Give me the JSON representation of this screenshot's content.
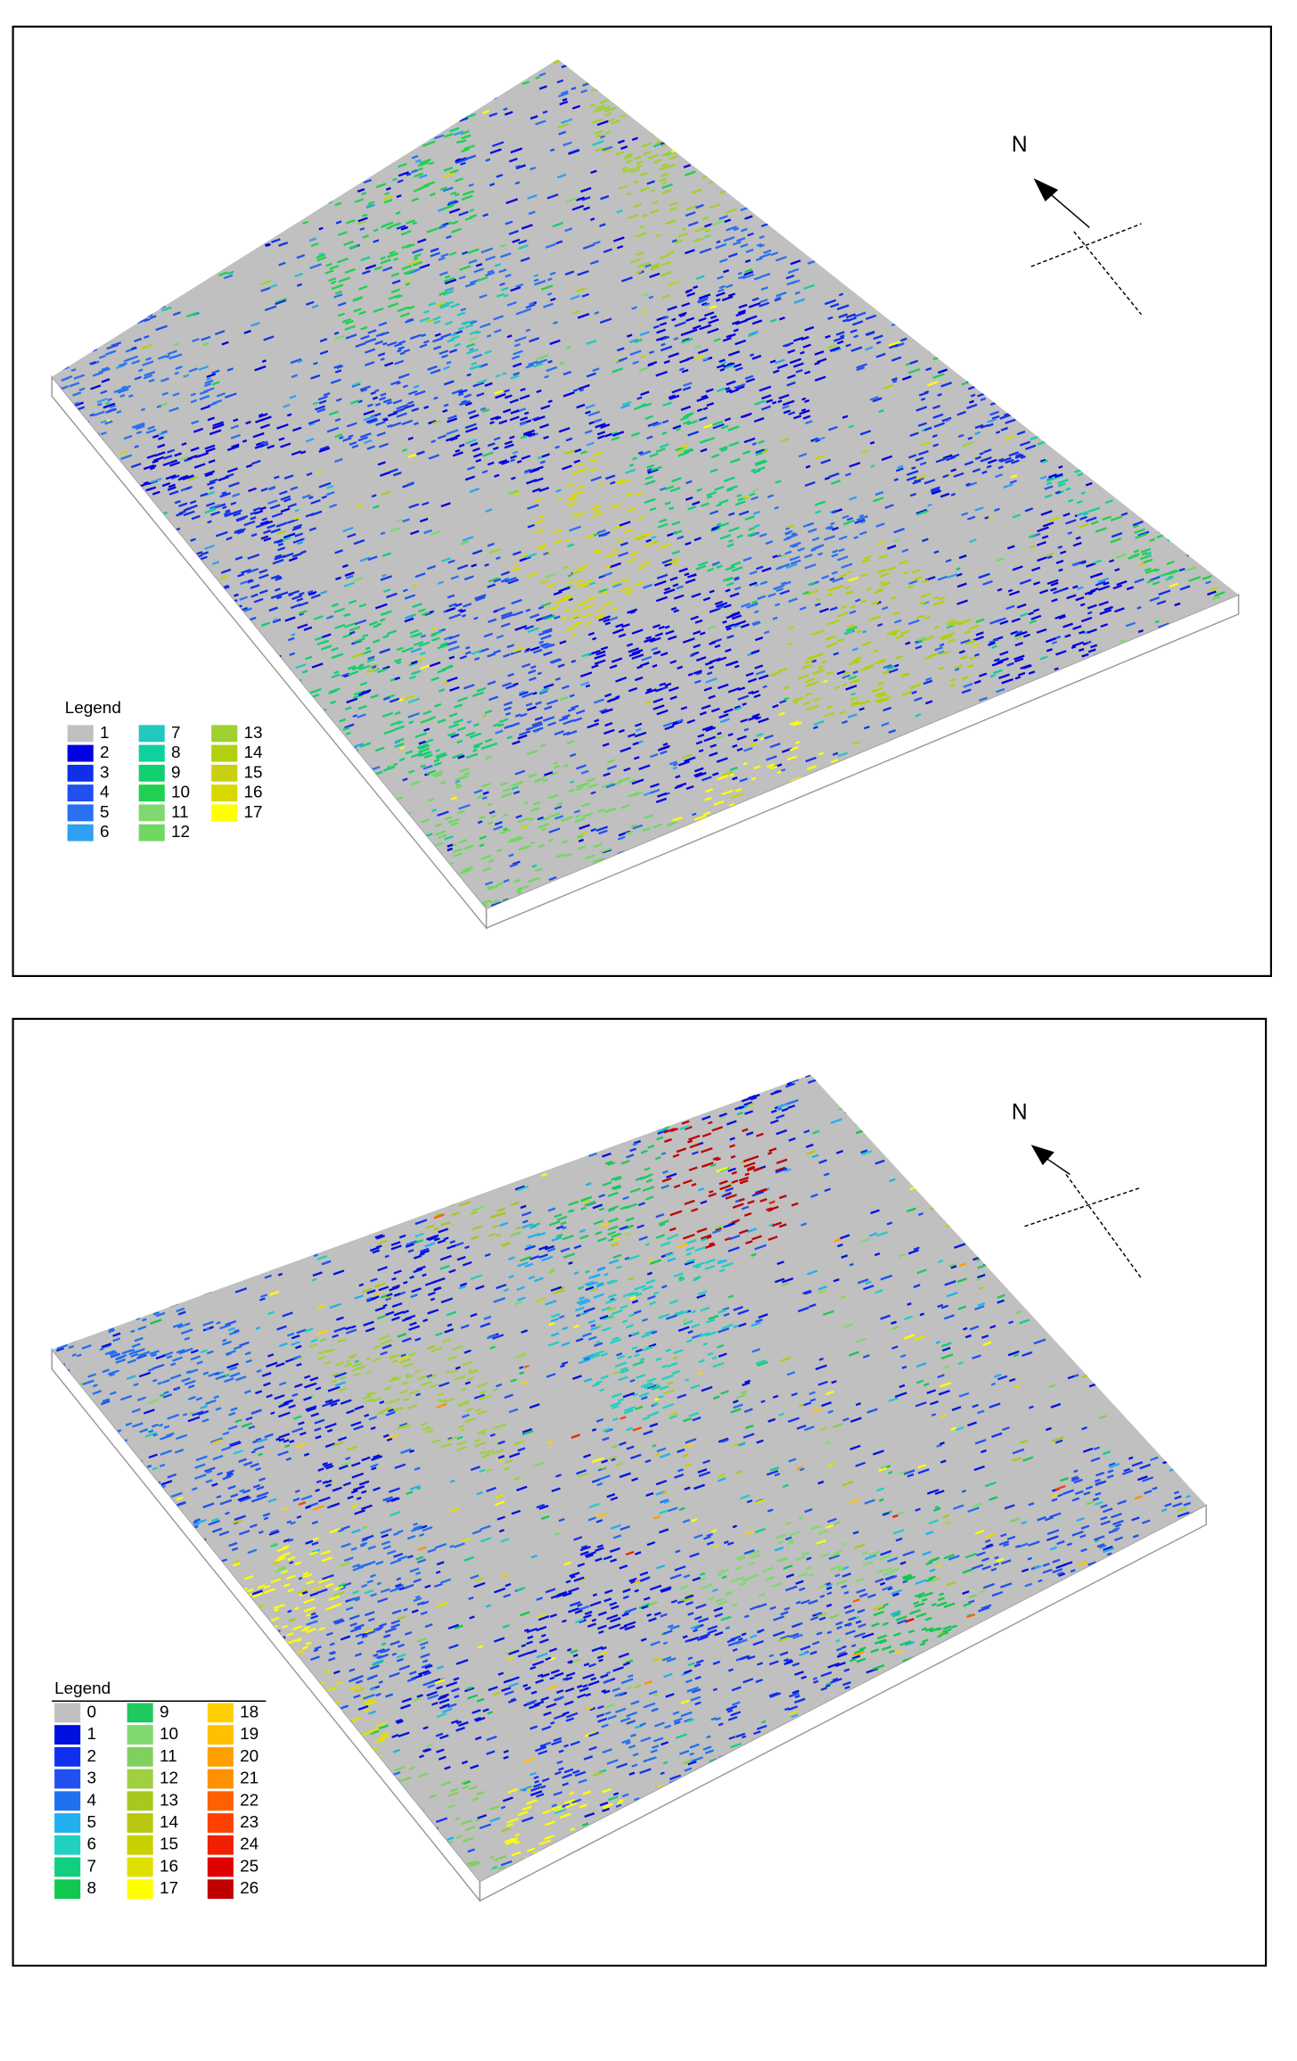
{
  "maps": [
    {
      "north_label": "N",
      "legend": {
        "title": "Legend",
        "items": [
          {
            "label": "1",
            "color": "#c0c0c0"
          },
          {
            "label": "2",
            "color": "#0000e0"
          },
          {
            "label": "3",
            "color": "#1030e8"
          },
          {
            "label": "4",
            "color": "#2050f0"
          },
          {
            "label": "5",
            "color": "#2a70f0"
          },
          {
            "label": "6",
            "color": "#30a0f0"
          },
          {
            "label": "7",
            "color": "#20c8c0"
          },
          {
            "label": "8",
            "color": "#10d0a0"
          },
          {
            "label": "9",
            "color": "#10d070"
          },
          {
            "label": "10",
            "color": "#20d050"
          },
          {
            "label": "11",
            "color": "#80d870"
          },
          {
            "label": "12",
            "color": "#70d860"
          },
          {
            "label": "13",
            "color": "#a0d030"
          },
          {
            "label": "14",
            "color": "#b0d010"
          },
          {
            "label": "15",
            "color": "#c8d010"
          },
          {
            "label": "16",
            "color": "#d8d800"
          },
          {
            "label": "17",
            "color": "#ffff00"
          }
        ]
      }
    },
    {
      "north_label": "N",
      "legend": {
        "title": "Legend",
        "items": [
          {
            "label": "0",
            "color": "#c0c0c0"
          },
          {
            "label": "1",
            "color": "#0010e0"
          },
          {
            "label": "2",
            "color": "#1030f0"
          },
          {
            "label": "3",
            "color": "#2050f0"
          },
          {
            "label": "4",
            "color": "#2070f0"
          },
          {
            "label": "5",
            "color": "#20b0f0"
          },
          {
            "label": "6",
            "color": "#20d0c0"
          },
          {
            "label": "7",
            "color": "#10d080"
          },
          {
            "label": "8",
            "color": "#10c850"
          },
          {
            "label": "9",
            "color": "#20c860"
          },
          {
            "label": "10",
            "color": "#80d870"
          },
          {
            "label": "11",
            "color": "#80d060"
          },
          {
            "label": "12",
            "color": "#a0d040"
          },
          {
            "label": "13",
            "color": "#a8c820"
          },
          {
            "label": "14",
            "color": "#b8c810"
          },
          {
            "label": "15",
            "color": "#c8d000"
          },
          {
            "label": "16",
            "color": "#e0e000"
          },
          {
            "label": "17",
            "color": "#ffff00"
          },
          {
            "label": "18",
            "color": "#ffd000"
          },
          {
            "label": "19",
            "color": "#ffc000"
          },
          {
            "label": "20",
            "color": "#ffa000"
          },
          {
            "label": "21",
            "color": "#ff9000"
          },
          {
            "label": "22",
            "color": "#ff6000"
          },
          {
            "label": "23",
            "color": "#ff4000"
          },
          {
            "label": "24",
            "color": "#f02000"
          },
          {
            "label": "25",
            "color": "#e00000"
          },
          {
            "label": "26",
            "color": "#c00000"
          }
        ]
      }
    }
  ]
}
